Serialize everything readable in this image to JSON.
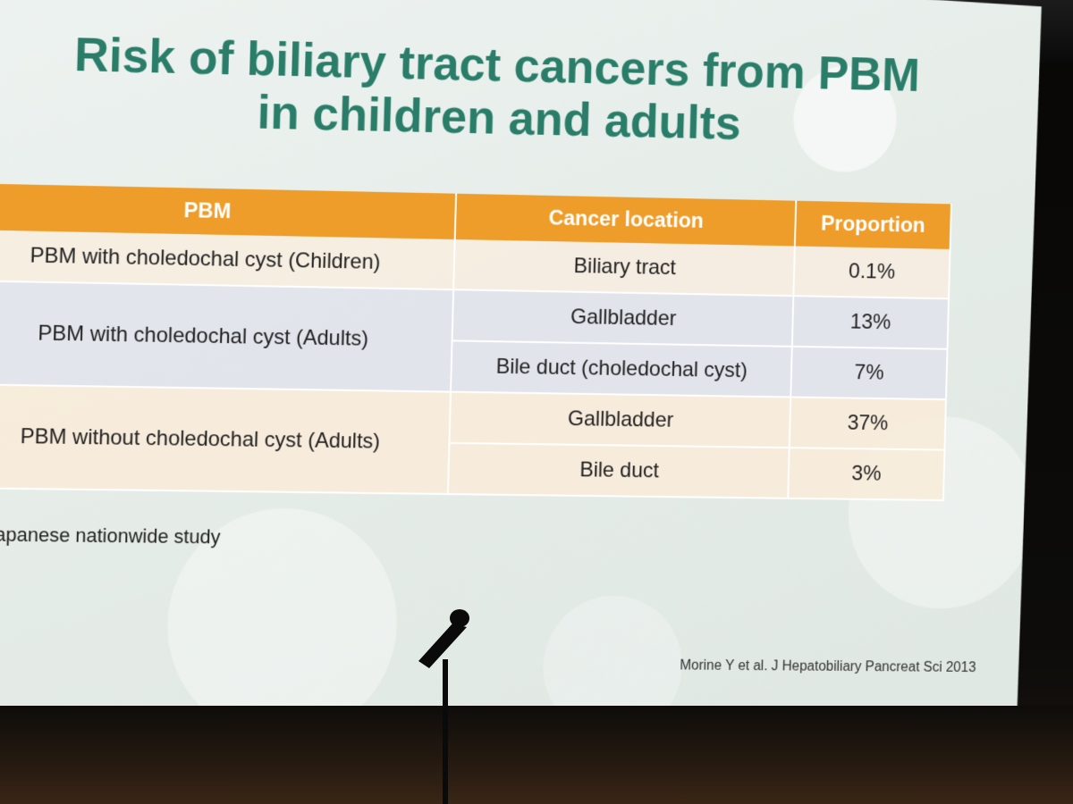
{
  "slide": {
    "title_line1": "Risk of biliary tract cancers from PBM",
    "title_line2": "in children and adults",
    "table": {
      "headers": [
        "PBM",
        "Cancer location",
        "Proportion"
      ],
      "groups": [
        {
          "pbm": "PBM with choledochal cyst (Children)",
          "rows": [
            {
              "location": "Biliary tract",
              "proportion": "0.1%"
            }
          ]
        },
        {
          "pbm": "PBM with choledochal cyst (Adults)",
          "rows": [
            {
              "location": "Gallbladder",
              "proportion": "13%"
            },
            {
              "location": "Bile duct (choledochal cyst)",
              "proportion": "7%"
            }
          ]
        },
        {
          "pbm": "PBM without choledochal cyst (Adults)",
          "rows": [
            {
              "location": "Gallbladder",
              "proportion": "37%"
            },
            {
              "location": "Bile duct",
              "proportion": "3%"
            }
          ]
        }
      ]
    },
    "footnote": "Japanese nationwide study",
    "citation": "Morine Y et al. J Hepatobiliary Pancreat Sci 2013"
  },
  "colors": {
    "title": "#2a7e69",
    "header": "#ef9d2a"
  }
}
